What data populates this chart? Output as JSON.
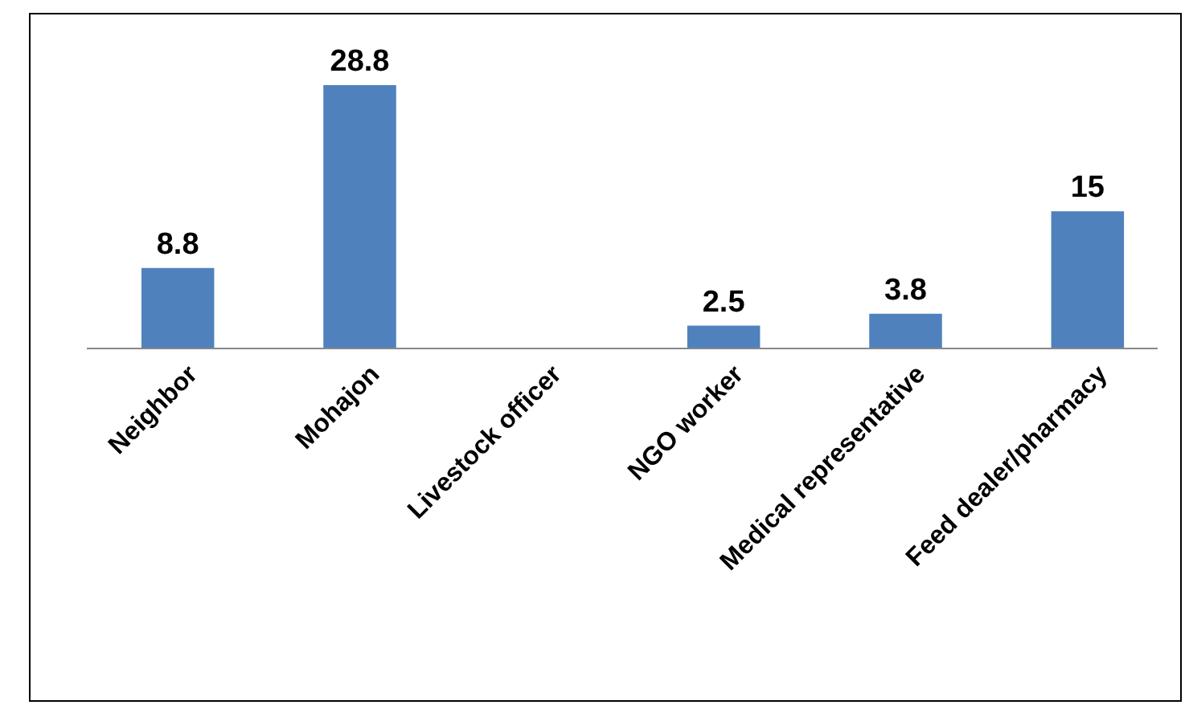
{
  "chart_data": {
    "type": "bar",
    "categories": [
      "Neighbor",
      "Mohajon",
      "Livestock officer",
      "NGO worker",
      "Medical representative",
      "Feed dealer/pharmacy"
    ],
    "values": [
      8.8,
      28.8,
      null,
      2.5,
      3.8,
      15
    ],
    "color": "#4f81bd",
    "data_labels": true
  }
}
